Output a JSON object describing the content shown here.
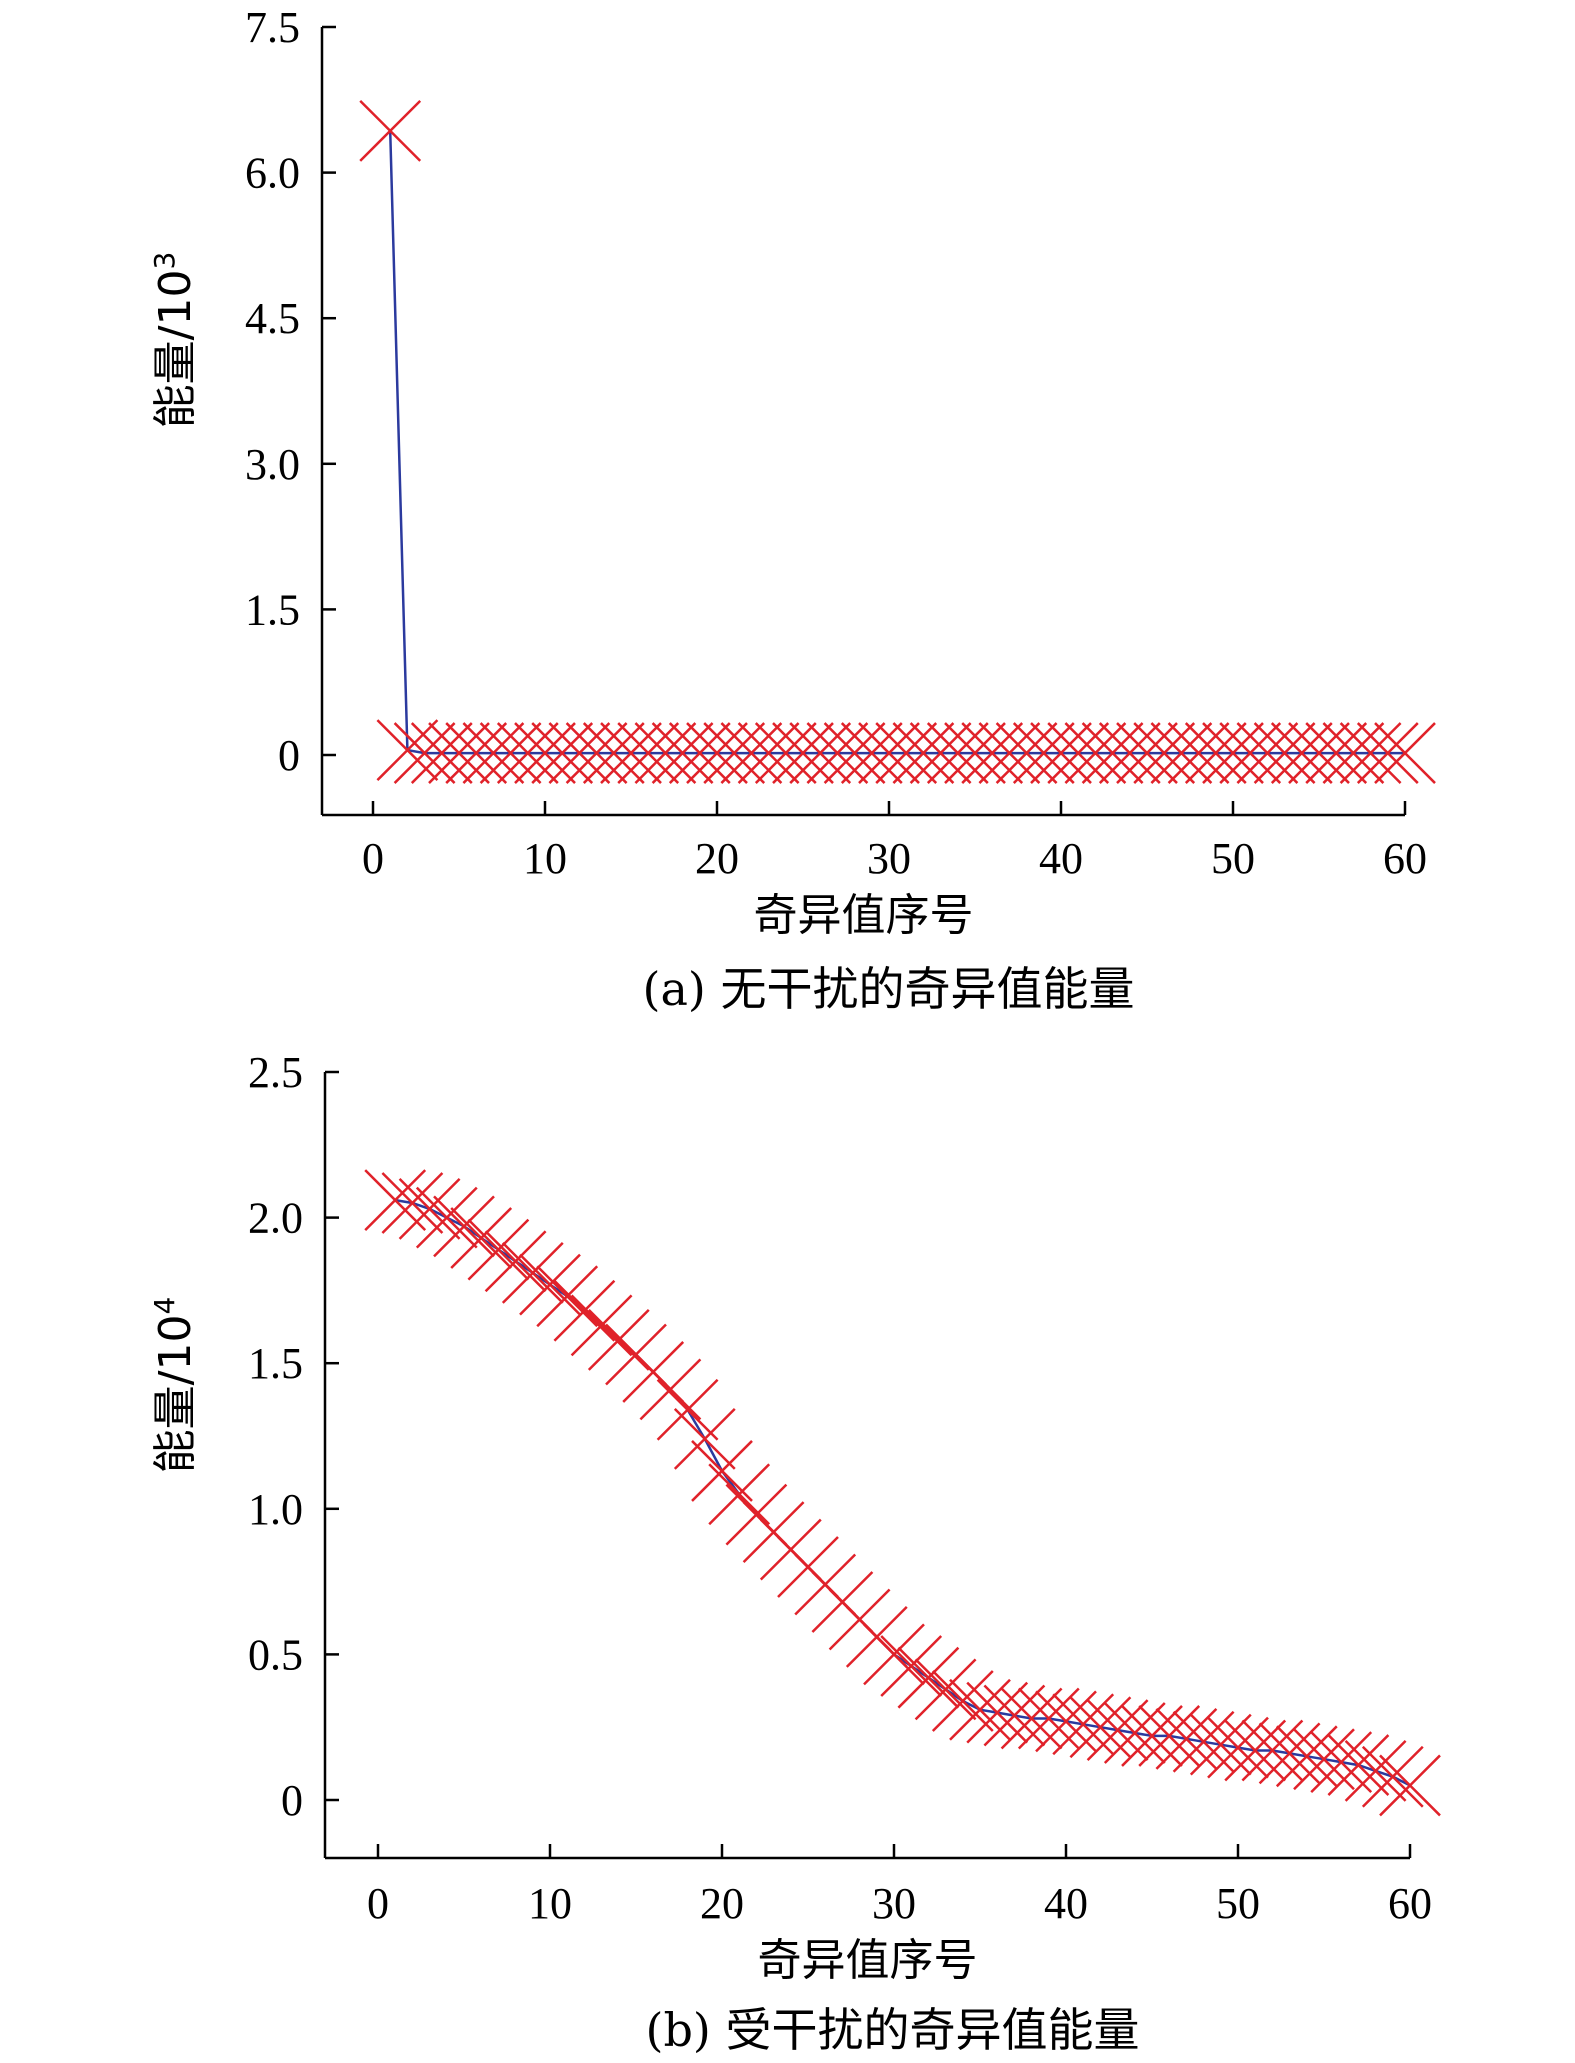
{
  "colors": {
    "line": "#2b3a9e",
    "marker": "#e0222a",
    "axis": "#000000"
  },
  "chart_data": [
    {
      "type": "line",
      "caption": "(a) 无干扰的奇异值能量",
      "xlabel": "奇异值序号",
      "ylabel": "能量/10",
      "ylabel_exp": "3",
      "xlim": [
        -3,
        60
      ],
      "ylim": [
        -0.6,
        7.5
      ],
      "xticks": [
        0,
        10,
        20,
        30,
        40,
        50,
        60
      ],
      "xtick_labels": [
        "0",
        "10",
        "20",
        "30",
        "40",
        "50",
        "60"
      ],
      "yticks": [
        0,
        1.5,
        3.0,
        4.5,
        6.0,
        7.5
      ],
      "ytick_labels": [
        "0",
        "1.5",
        "3.0",
        "4.5",
        "6.0",
        "7.5"
      ],
      "series": [
        {
          "x": [
            1,
            2,
            3,
            4,
            5,
            6,
            7,
            8,
            9,
            10,
            11,
            12,
            13,
            14,
            15,
            16,
            17,
            18,
            19,
            20,
            21,
            22,
            23,
            24,
            25,
            26,
            27,
            28,
            29,
            30,
            31,
            32,
            33,
            34,
            35,
            36,
            37,
            38,
            39,
            40,
            41,
            42,
            43,
            44,
            45,
            46,
            47,
            48,
            49,
            50,
            51,
            52,
            53,
            54,
            55,
            56,
            57,
            58,
            59,
            60
          ],
          "y": [
            6.43,
            0.05,
            0.02,
            0.02,
            0.02,
            0.02,
            0.02,
            0.02,
            0.02,
            0.02,
            0.02,
            0.02,
            0.02,
            0.02,
            0.02,
            0.02,
            0.02,
            0.02,
            0.02,
            0.02,
            0.02,
            0.02,
            0.02,
            0.02,
            0.02,
            0.02,
            0.02,
            0.02,
            0.02,
            0.02,
            0.02,
            0.02,
            0.02,
            0.02,
            0.02,
            0.02,
            0.02,
            0.02,
            0.02,
            0.02,
            0.02,
            0.02,
            0.02,
            0.02,
            0.02,
            0.02,
            0.02,
            0.02,
            0.02,
            0.02,
            0.02,
            0.02,
            0.02,
            0.02,
            0.02,
            0.02,
            0.02,
            0.02,
            0.02,
            0.02
          ]
        }
      ]
    },
    {
      "type": "line",
      "caption": "(b) 受干扰的奇异值能量",
      "xlabel": "奇异值序号",
      "ylabel": "能量/10",
      "ylabel_exp": "4",
      "xlim": [
        -3,
        60
      ],
      "ylim": [
        -0.2,
        2.5
      ],
      "xticks": [
        0,
        10,
        20,
        30,
        40,
        50,
        60
      ],
      "xtick_labels": [
        "0",
        "10",
        "20",
        "30",
        "40",
        "50",
        "60"
      ],
      "yticks": [
        0,
        0.5,
        1.0,
        1.5,
        2.0,
        2.5
      ],
      "ytick_labels": [
        "0",
        "0.5",
        "1.0",
        "1.5",
        "2.0",
        "2.5"
      ],
      "series": [
        {
          "x": [
            1,
            2,
            3,
            4,
            5,
            6,
            7,
            8,
            9,
            10,
            11,
            12,
            13,
            14,
            15,
            16,
            17,
            18,
            19,
            20,
            21,
            22,
            23,
            24,
            25,
            26,
            27,
            28,
            29,
            30,
            31,
            32,
            33,
            34,
            35,
            36,
            37,
            38,
            39,
            40,
            41,
            42,
            43,
            44,
            45,
            46,
            47,
            48,
            49,
            50,
            51,
            52,
            53,
            54,
            55,
            56,
            57,
            58,
            59,
            60
          ],
          "y": [
            2.06,
            2.05,
            2.03,
            2.0,
            1.97,
            1.93,
            1.89,
            1.85,
            1.81,
            1.77,
            1.73,
            1.68,
            1.63,
            1.58,
            1.53,
            1.47,
            1.41,
            1.34,
            1.24,
            1.13,
            1.05,
            0.98,
            0.92,
            0.86,
            0.8,
            0.74,
            0.68,
            0.62,
            0.56,
            0.5,
            0.46,
            0.42,
            0.38,
            0.34,
            0.31,
            0.3,
            0.29,
            0.28,
            0.28,
            0.27,
            0.26,
            0.25,
            0.24,
            0.23,
            0.22,
            0.22,
            0.21,
            0.2,
            0.19,
            0.18,
            0.17,
            0.17,
            0.16,
            0.15,
            0.14,
            0.13,
            0.12,
            0.1,
            0.08,
            0.05
          ]
        }
      ]
    }
  ]
}
